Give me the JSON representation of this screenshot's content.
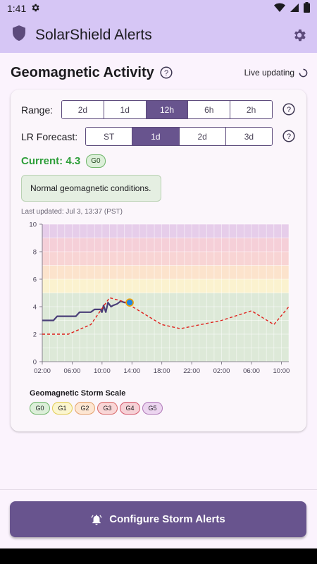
{
  "status_bar": {
    "time": "1:41"
  },
  "app_bar": {
    "title": "SolarShield Alerts"
  },
  "section": {
    "title": "Geomagnetic Activity",
    "live_label": "Live updating"
  },
  "range": {
    "label": "Range:",
    "options": [
      "2d",
      "1d",
      "12h",
      "6h",
      "2h"
    ],
    "selected": "12h"
  },
  "forecast": {
    "label": "LR Forecast:",
    "options": [
      "ST",
      "1d",
      "2d",
      "3d"
    ],
    "selected": "1d"
  },
  "current": {
    "label": "Current: 4.3",
    "badge": "G0"
  },
  "note": "Normal geomagnetic conditions.",
  "updated": "Last updated: Jul 3, 13:37 (PST)",
  "colors": {
    "accent": "#68548e",
    "observed_line": "#4a3f78",
    "forecast_line": "#e0201c",
    "current_point": "#1e88e5",
    "current_text": "#2e9e3a"
  },
  "chart_data": {
    "type": "line",
    "ylim": [
      0,
      10
    ],
    "y_ticks": [
      "0",
      "2",
      "4",
      "6",
      "8",
      "10"
    ],
    "x_tick_labels": [
      "02:00",
      "06:00",
      "10:00",
      "14:00",
      "18:00",
      "22:00",
      "02:00",
      "06:00",
      "10:00"
    ],
    "x_tick_hours": [
      2,
      6,
      10,
      14,
      18,
      22,
      26,
      30,
      34
    ],
    "x_range_hours": [
      2,
      35
    ],
    "bands": [
      {
        "label": "G0",
        "from": 0,
        "to": 5,
        "color": "#dde9d8"
      },
      {
        "label": "G1",
        "from": 5,
        "to": 6,
        "color": "#fbf2cf"
      },
      {
        "label": "G2",
        "from": 6,
        "to": 7,
        "color": "#fce3cc"
      },
      {
        "label": "G3",
        "from": 7,
        "to": 8,
        "color": "#f8d4d4"
      },
      {
        "label": "G4",
        "from": 8,
        "to": 9,
        "color": "#f5cfd8"
      },
      {
        "label": "G5",
        "from": 9,
        "to": 10,
        "color": "#e6cdea"
      }
    ],
    "series": [
      {
        "style": "solid",
        "points": [
          [
            2.0,
            3.0
          ],
          [
            3.5,
            3.0
          ],
          [
            4.0,
            3.3
          ],
          [
            6.5,
            3.3
          ],
          [
            7.0,
            3.6
          ],
          [
            8.5,
            3.6
          ],
          [
            9.0,
            3.8
          ],
          [
            9.8,
            3.8
          ],
          [
            10.0,
            3.6
          ],
          [
            10.2,
            4.1
          ],
          [
            10.5,
            3.6
          ],
          [
            10.8,
            4.3
          ],
          [
            11.2,
            4.0
          ],
          [
            11.5,
            4.1
          ],
          [
            12.0,
            4.2
          ],
          [
            12.5,
            4.4
          ],
          [
            13.0,
            4.3
          ],
          [
            13.5,
            4.3
          ]
        ]
      },
      {
        "style": "dashed",
        "points": [
          [
            2.0,
            2.0
          ],
          [
            5.5,
            2.0
          ],
          [
            8.5,
            2.7
          ],
          [
            11.0,
            4.65
          ],
          [
            13.0,
            4.35
          ],
          [
            18.0,
            2.7
          ],
          [
            20.5,
            2.4
          ],
          [
            26.0,
            3.0
          ],
          [
            30.0,
            3.7
          ],
          [
            33.0,
            2.7
          ],
          [
            35.0,
            4.0
          ]
        ]
      }
    ],
    "current_point": [
      13.7,
      4.3
    ]
  },
  "scale": {
    "title": "Geomagnetic Storm Scale",
    "chips": [
      {
        "label": "G0",
        "bg": "#dcefd9",
        "border": "#6fb56a"
      },
      {
        "label": "G1",
        "bg": "#fbf6cf",
        "border": "#e2cc54"
      },
      {
        "label": "G2",
        "bg": "#fde6d2",
        "border": "#e3a06b"
      },
      {
        "label": "G3",
        "bg": "#f9d6d6",
        "border": "#d96a6a"
      },
      {
        "label": "G4",
        "bg": "#f6d1d6",
        "border": "#d4576a"
      },
      {
        "label": "G5",
        "bg": "#ecd5f0",
        "border": "#b07ab8"
      }
    ]
  },
  "cta": {
    "label": "Configure Storm Alerts"
  }
}
